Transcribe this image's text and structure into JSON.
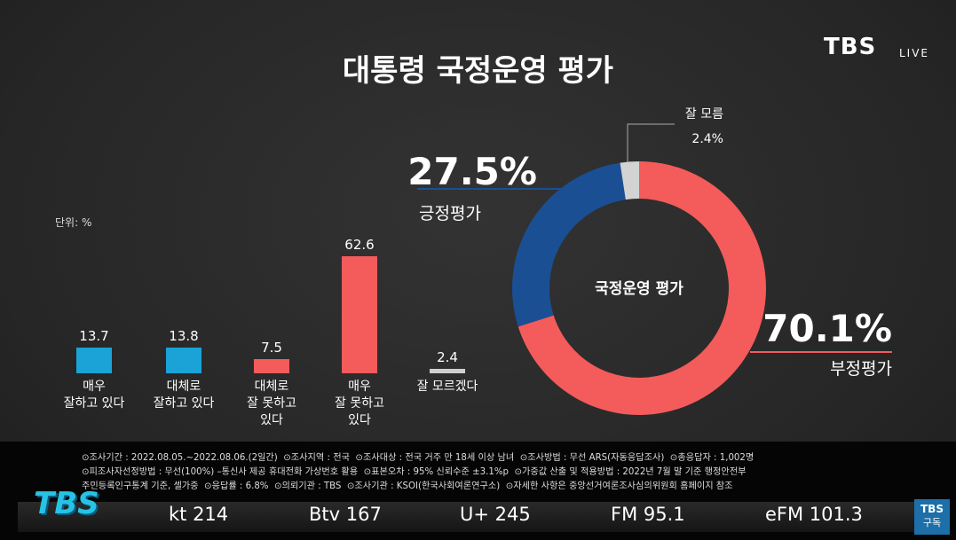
{
  "title": "대통령 국정운영 평가",
  "brand": {
    "logo": "TBS",
    "live": "LIVE"
  },
  "chart_data": [
    {
      "type": "bar",
      "unit_label": "단위: %",
      "categories": [
        "매우\n잘하고 있다",
        "대체로\n잘하고 있다",
        "대체로\n잘 못하고\n있다",
        "매우\n잘 못하고\n있다",
        "잘 모르겠다"
      ],
      "values": [
        13.7,
        13.8,
        7.5,
        62.6,
        2.4
      ],
      "colors": [
        "#1ba3d8",
        "#1ba3d8",
        "#f45b5b",
        "#f45b5b",
        "#cfcfcf"
      ]
    },
    {
      "type": "pie",
      "center_label": "국정운영 평가",
      "categories": [
        "부정평가",
        "긍정평가",
        "잘 모름"
      ],
      "values": [
        70.1,
        27.5,
        2.4
      ],
      "value_labels": [
        "70.1%",
        "27.5%",
        "2.4%"
      ],
      "colors": [
        "#f45b5b",
        "#1b4f94",
        "#d3d3d3"
      ]
    }
  ],
  "footnotes": [
    "⊙조사기간 : 2022.08.05.~2022.08.06.(2일간)  ⊙조사지역 : 전국  ⊙조사대상 : 전국 거주 만 18세 이상 남녀  ⊙조사방법 : 무선 ARS(자동응답조사)  ⊙총응답자 : 1,002명",
    "⊙피조사자선정방법 : 무선(100%) –통신사 제공 휴대전화 가상번호 활용  ⊙표본오차 : 95% 신뢰수준 ±3.1%p  ⊙가중값 산출 및 적용방법 : 2022년 7월 말 기준 행정안전부",
    "주민등록인구통계 기준, 셀가중  ⊙응답률 : 6.8%  ⊙의뢰기관 : TBS  ⊙조사기관 : KSOI(한국사회여론연구소)  ⊙자세한 사항은 중앙선거여론조사심의위원회 홈페이지 참조"
  ],
  "channels": [
    "kt 214",
    "Btv 167",
    "U+ 245",
    "FM 95.1",
    "eFM 101.3"
  ],
  "subscribe": {
    "logo": "TBS",
    "label": "구독"
  }
}
